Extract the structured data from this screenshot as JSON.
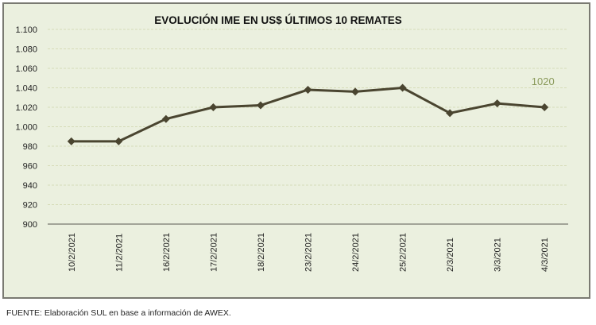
{
  "chart_data": {
    "type": "line",
    "title": "EVOLUCIÓN IME EN US$ ÚLTIMOS 10 REMATES",
    "categories": [
      "10/2/2021",
      "11/2/2021",
      "16/2/2021",
      "17/2/2021",
      "18/2/2021",
      "23/2/2021",
      "24/2/2021",
      "25/2/2021",
      "2/3/2021",
      "3/3/2021",
      "4/3/2021"
    ],
    "series": [
      {
        "values": [
          985,
          985,
          1008,
          1020,
          1022,
          1038,
          1036,
          1040,
          1014,
          1024,
          1020
        ]
      }
    ],
    "ylim": [
      900,
      1100
    ],
    "yticks": [
      "900",
      "920",
      "940",
      "960",
      "980",
      "1.000",
      "1.020",
      "1.040",
      "1.060",
      "1.080",
      "1.100"
    ],
    "annotation": "1020",
    "grid": true,
    "colors": {
      "line": "#4a4530",
      "annotation": "#8a9a5b",
      "background": "#ebf0df",
      "grid": "#d6dcb8"
    }
  },
  "footer": "FUENTE: Elaboración SUL en base a información de AWEX."
}
